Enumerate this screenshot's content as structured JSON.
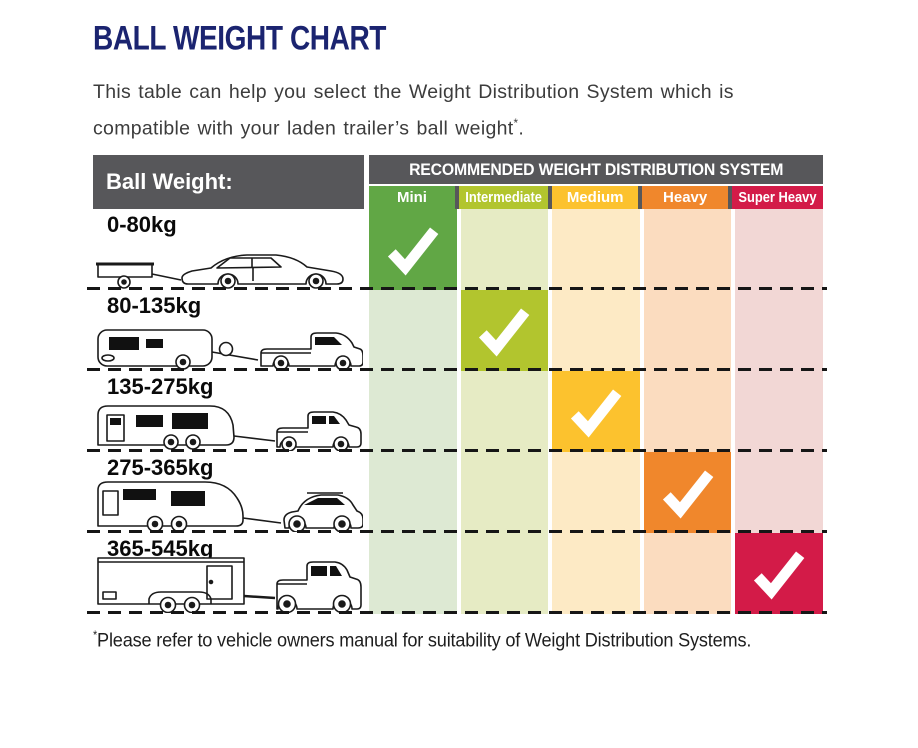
{
  "page": {
    "title": "BALL WEIGHT CHART",
    "intro_line1": "This table can help you select the Weight Distribution System which is",
    "intro_line2": "compatible with your laden trailer’s ball weight",
    "intro_superscript": "*",
    "intro_period": ".",
    "footnote_star": "*",
    "footnote_text": "Please refer to vehicle owners manual for suitability of Weight Distribution Systems."
  },
  "table": {
    "left_header": "Ball Weight:",
    "top_header": "RECOMMENDED WEIGHT DISTRIBUTION SYSTEM",
    "columns": [
      {
        "label": "Mini",
        "color": "#61a745",
        "tint": "#dde9d3"
      },
      {
        "label": "Intermediate",
        "color": "#b2c52e",
        "tint": "#e6ebc4"
      },
      {
        "label": "Medium",
        "color": "#fcc22e",
        "tint": "#fdeac5"
      },
      {
        "label": "Heavy",
        "color": "#f0872c",
        "tint": "#fbdcbf"
      },
      {
        "label": "Super Heavy",
        "color": "#d31b48",
        "tint": "#f2d7d5"
      }
    ],
    "rows": [
      {
        "label": "0-80kg",
        "checked_column": "Mini",
        "vehicle": "box-trailer-and-sedan"
      },
      {
        "label": "80-135kg",
        "checked_column": "Intermediate",
        "vehicle": "camper-trailer-and-ute"
      },
      {
        "label": "135-275kg",
        "checked_column": "Medium",
        "vehicle": "caravan-and-dual-cab-ute"
      },
      {
        "label": "275-365kg",
        "checked_column": "Heavy",
        "vehicle": "large-caravan-and-suv"
      },
      {
        "label": "365-545kg",
        "checked_column": "Super Heavy",
        "vehicle": "enclosed-trailer-and-truck"
      }
    ],
    "check_icon": "checkmark",
    "colors": {
      "header_gray": "#57575a",
      "title_navy": "#1b2470",
      "body_text": "#3c3c3c",
      "row_label": "#0a0a0a",
      "check_white": "#ffffff"
    }
  }
}
